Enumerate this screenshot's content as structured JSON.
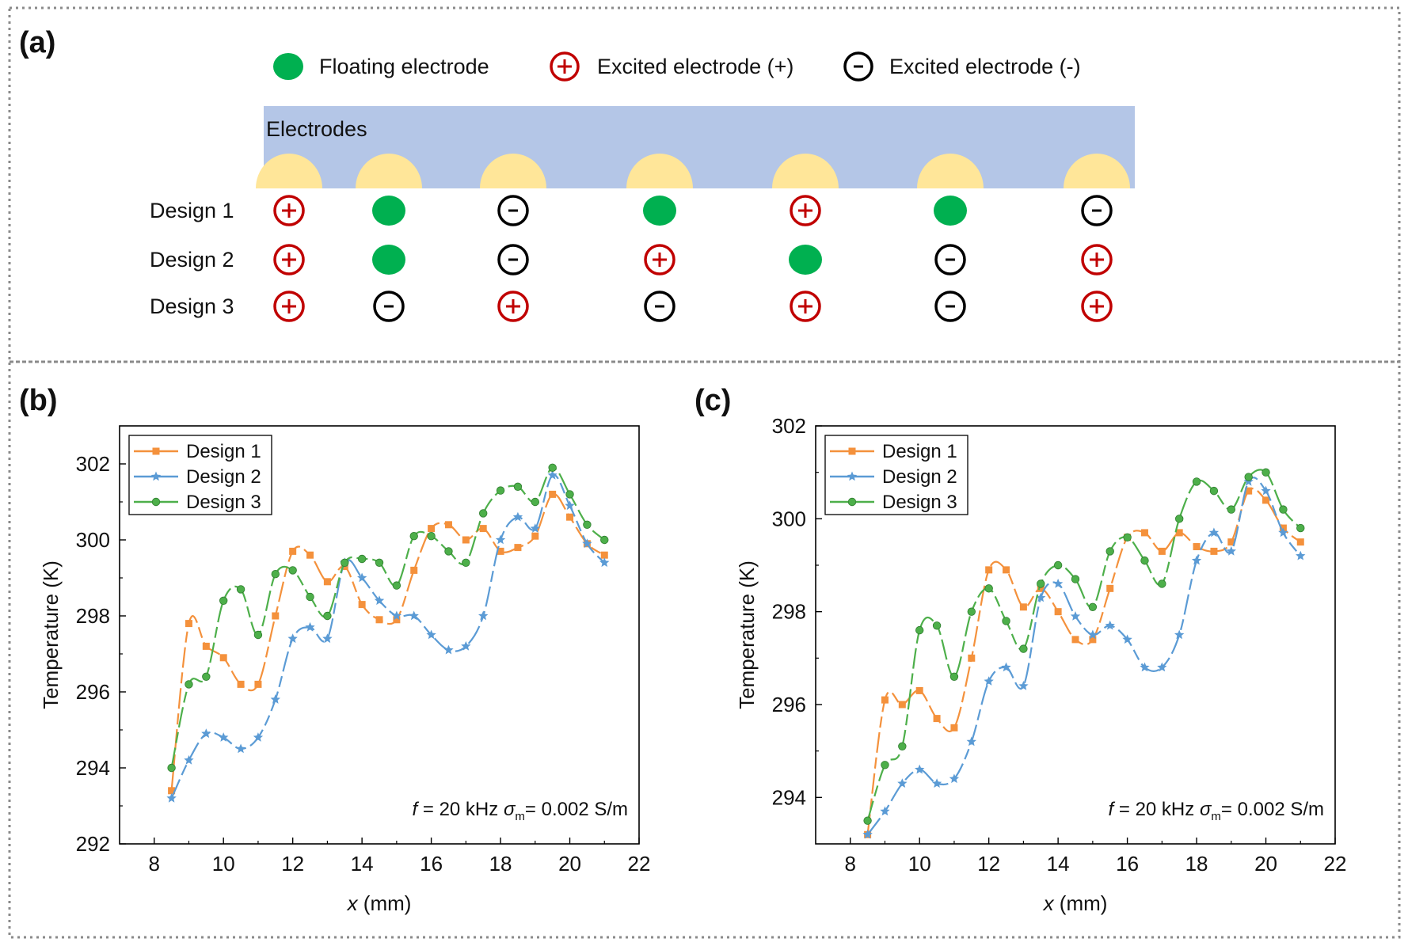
{
  "panel_a": {
    "label": "(a)",
    "legend": {
      "floating": "Floating electrode",
      "plus": "Excited electrode (+)",
      "minus": "Excited electrode (-)"
    },
    "bar_label": "Electrodes",
    "designs": [
      {
        "name": "Design 1",
        "pattern": [
          "+",
          "F",
          "-",
          "F",
          "+",
          "F",
          "-"
        ]
      },
      {
        "name": "Design 2",
        "pattern": [
          "+",
          "F",
          "-",
          "+",
          "F",
          "-",
          "+"
        ]
      },
      {
        "name": "Design 3",
        "pattern": [
          "+",
          "-",
          "+",
          "-",
          "+",
          "-",
          "+"
        ]
      }
    ],
    "colors": {
      "bar": "#b4c6e7",
      "electrode": "#ffe699",
      "floating": "#00b050",
      "plus": "#c00000",
      "minus": "#000000"
    }
  },
  "chart_data": [
    {
      "panel_label": "(b)",
      "type": "line",
      "xlabel_var": "x",
      "xlabel_unit": " (mm)",
      "ylabel": "Temperature (K)",
      "xlim": [
        7,
        22
      ],
      "ylim": [
        292,
        303
      ],
      "xticks": [
        8,
        10,
        12,
        14,
        16,
        18,
        20,
        22
      ],
      "yticks": [
        292,
        294,
        296,
        298,
        300,
        302
      ],
      "annotation": {
        "f": "f",
        "f_val": " = 20 kHz",
        "sigma": "σ",
        "sub": "m",
        "sigma_val": "= 0.002 S/m"
      },
      "x": [
        8.5,
        9.0,
        9.5,
        10.0,
        10.5,
        11.0,
        11.5,
        12.0,
        12.5,
        13.0,
        13.5,
        14.0,
        14.5,
        15.0,
        15.5,
        16.0,
        16.5,
        17.0,
        17.5,
        18.0,
        18.5,
        19.0,
        19.5,
        20.0,
        20.5,
        21.0
      ],
      "series": [
        {
          "name": "Design 1",
          "color": "#f4913c",
          "marker": "square",
          "values": [
            293.4,
            297.8,
            297.2,
            296.9,
            296.2,
            296.2,
            298.0,
            299.7,
            299.6,
            298.9,
            299.3,
            298.3,
            297.9,
            297.9,
            299.2,
            300.3,
            300.4,
            300.0,
            300.3,
            299.7,
            299.8,
            300.1,
            301.2,
            300.6,
            299.9,
            299.6
          ]
        },
        {
          "name": "Design 2",
          "color": "#5b9bd5",
          "marker": "star",
          "values": [
            293.2,
            294.2,
            294.9,
            294.8,
            294.5,
            294.8,
            295.8,
            297.4,
            297.7,
            297.4,
            299.4,
            299.0,
            298.4,
            298.0,
            298.0,
            297.5,
            297.1,
            297.2,
            298.0,
            300.0,
            300.6,
            300.3,
            301.7,
            300.9,
            299.9,
            299.4
          ]
        },
        {
          "name": "Design 3",
          "color": "#4daf4a",
          "marker": "circle",
          "values": [
            294.0,
            296.2,
            296.4,
            298.4,
            298.7,
            297.5,
            299.1,
            299.2,
            298.5,
            298.0,
            299.4,
            299.5,
            299.4,
            298.8,
            300.1,
            300.1,
            299.7,
            299.4,
            300.7,
            301.3,
            301.4,
            301.0,
            301.9,
            301.2,
            300.4,
            300.0
          ]
        }
      ]
    },
    {
      "panel_label": "(c)",
      "type": "line",
      "xlabel_var": "x",
      "xlabel_unit": " (mm)",
      "ylabel": "Temperature (K)",
      "xlim": [
        7,
        22
      ],
      "ylim": [
        293,
        302
      ],
      "xticks": [
        8,
        10,
        12,
        14,
        16,
        18,
        20,
        22
      ],
      "yticks": [
        294,
        296,
        298,
        300,
        302
      ],
      "annotation": {
        "f": "f",
        "f_val": " = 20 kHz",
        "sigma": "σ",
        "sub": "m",
        "sigma_val": "= 0.002 S/m"
      },
      "x": [
        8.5,
        9.0,
        9.5,
        10.0,
        10.5,
        11.0,
        11.5,
        12.0,
        12.5,
        13.0,
        13.5,
        14.0,
        14.5,
        15.0,
        15.5,
        16.0,
        16.5,
        17.0,
        17.5,
        18.0,
        18.5,
        19.0,
        19.5,
        20.0,
        20.5,
        21.0
      ],
      "series": [
        {
          "name": "Design 1",
          "color": "#f4913c",
          "marker": "square",
          "values": [
            293.2,
            296.1,
            296.0,
            296.3,
            295.7,
            295.5,
            297.0,
            298.9,
            298.9,
            298.1,
            298.5,
            298.0,
            297.4,
            297.4,
            298.5,
            299.6,
            299.7,
            299.3,
            299.7,
            299.4,
            299.3,
            299.5,
            300.6,
            300.4,
            299.8,
            299.5
          ]
        },
        {
          "name": "Design 2",
          "color": "#5b9bd5",
          "marker": "star",
          "values": [
            293.2,
            293.7,
            294.3,
            294.6,
            294.3,
            294.4,
            295.2,
            296.5,
            296.8,
            296.4,
            298.3,
            298.6,
            297.9,
            297.5,
            297.7,
            297.4,
            296.8,
            296.8,
            297.5,
            299.1,
            299.7,
            299.3,
            300.8,
            300.6,
            299.7,
            299.2
          ]
        },
        {
          "name": "Design 3",
          "color": "#4daf4a",
          "marker": "circle",
          "values": [
            293.5,
            294.7,
            295.1,
            297.6,
            297.7,
            296.6,
            298.0,
            298.5,
            297.8,
            297.2,
            298.6,
            299.0,
            298.7,
            298.1,
            299.3,
            299.6,
            299.1,
            298.6,
            300.0,
            300.8,
            300.6,
            300.2,
            300.9,
            301.0,
            300.2,
            299.8
          ]
        }
      ]
    }
  ]
}
